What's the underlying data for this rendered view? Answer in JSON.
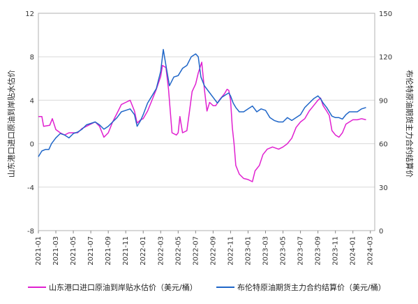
{
  "chart_data": {
    "type": "line",
    "left_axis": {
      "title": "山东港口进口原油到岸贴水估价",
      "range": [
        -8,
        12
      ],
      "ticks": [
        "12",
        "8",
        "4",
        "0",
        "-4",
        "-8"
      ]
    },
    "right_axis": {
      "title": "布伦特原油期货主力合约结算价",
      "range": [
        0,
        150
      ],
      "ticks": [
        "150",
        "120",
        "90",
        "60",
        "30",
        "0"
      ]
    },
    "x_ticks": [
      "2021-01",
      "2021-03",
      "2021-05",
      "2021-07",
      "2021-09",
      "2021-11",
      "2022-01",
      "2022-03",
      "2022-05",
      "2022-07",
      "2022-09",
      "2022-11",
      "2023-01",
      "2023-03",
      "2023-05",
      "2023-07",
      "2023-09",
      "2023-11",
      "2024-01",
      "2024-03"
    ],
    "x_range": [
      0,
      38.5
    ],
    "grid": "horizontal",
    "legend_position": "bottom",
    "series": [
      {
        "name": "山东港口进口原油到岸贴水估价（美元/桶）",
        "axis": "left",
        "color": "#e020d0",
        "points": [
          [
            0,
            2.5
          ],
          [
            0.4,
            2.5
          ],
          [
            0.6,
            1.6
          ],
          [
            1.3,
            1.7
          ],
          [
            1.6,
            2.3
          ],
          [
            2,
            1.3
          ],
          [
            2.5,
            1.0
          ],
          [
            3,
            0.8
          ],
          [
            3.5,
            1.0
          ],
          [
            4,
            1.0
          ],
          [
            4.5,
            1.0
          ],
          [
            5,
            1.4
          ],
          [
            5.5,
            1.6
          ],
          [
            6,
            1.8
          ],
          [
            6.5,
            2.0
          ],
          [
            7,
            1.6
          ],
          [
            7.5,
            0.6
          ],
          [
            8,
            1.0
          ],
          [
            8.5,
            2.0
          ],
          [
            9,
            2.8
          ],
          [
            9.5,
            3.6
          ],
          [
            10,
            3.8
          ],
          [
            10.5,
            4.0
          ],
          [
            11,
            3.0
          ],
          [
            11.3,
            1.9
          ],
          [
            11.7,
            2.2
          ],
          [
            12,
            2.3
          ],
          [
            12.5,
            3.0
          ],
          [
            13,
            4.0
          ],
          [
            13.5,
            5.0
          ],
          [
            14,
            6.2
          ],
          [
            14.2,
            7.2
          ],
          [
            14.6,
            7.0
          ],
          [
            14.9,
            5.0
          ],
          [
            15.1,
            3.0
          ],
          [
            15.3,
            1.0
          ],
          [
            15.8,
            0.8
          ],
          [
            16,
            1.0
          ],
          [
            16.2,
            2.5
          ],
          [
            16.5,
            1.0
          ],
          [
            17,
            1.2
          ],
          [
            17.3,
            3.0
          ],
          [
            17.6,
            4.8
          ],
          [
            18,
            5.5
          ],
          [
            18.3,
            6.5
          ],
          [
            18.7,
            7.5
          ],
          [
            19,
            5.0
          ],
          [
            19.3,
            3.0
          ],
          [
            19.6,
            3.8
          ],
          [
            20,
            3.5
          ],
          [
            20.3,
            3.5
          ],
          [
            20.7,
            4.0
          ],
          [
            21,
            4.3
          ],
          [
            21.3,
            4.6
          ],
          [
            21.6,
            5.0
          ],
          [
            21.8,
            4.9
          ],
          [
            22,
            4.0
          ],
          [
            22.2,
            1.5
          ],
          [
            22.4,
            0.0
          ],
          [
            22.6,
            -2.0
          ],
          [
            23,
            -2.8
          ],
          [
            23.5,
            -3.2
          ],
          [
            24,
            -3.3
          ],
          [
            24.5,
            -3.5
          ],
          [
            24.8,
            -2.5
          ],
          [
            25.3,
            -2.0
          ],
          [
            25.7,
            -1.0
          ],
          [
            26.2,
            -0.5
          ],
          [
            26.8,
            -0.3
          ],
          [
            27.5,
            -0.5
          ],
          [
            28,
            -0.3
          ],
          [
            28.5,
            0.0
          ],
          [
            29,
            0.5
          ],
          [
            29.5,
            1.5
          ],
          [
            30,
            2.0
          ],
          [
            30.5,
            2.3
          ],
          [
            31,
            3.0
          ],
          [
            31.5,
            3.5
          ],
          [
            32,
            4.0
          ],
          [
            32.3,
            4.2
          ],
          [
            32.6,
            3.5
          ],
          [
            33,
            3.0
          ],
          [
            33.3,
            2.6
          ],
          [
            33.6,
            1.2
          ],
          [
            34,
            0.8
          ],
          [
            34.4,
            0.6
          ],
          [
            34.8,
            1.0
          ],
          [
            35.2,
            1.8
          ],
          [
            35.6,
            2.0
          ],
          [
            36,
            2.2
          ],
          [
            36.5,
            2.2
          ],
          [
            37,
            2.3
          ],
          [
            37.5,
            2.2
          ]
        ]
      },
      {
        "name": "布伦特原油期货主力合约结算价（美元/桶）",
        "axis": "right",
        "color": "#1f66c8",
        "points": [
          [
            0,
            51
          ],
          [
            0.4,
            55
          ],
          [
            0.8,
            56
          ],
          [
            1.2,
            56
          ],
          [
            1.5,
            60
          ],
          [
            2,
            64
          ],
          [
            2.5,
            67
          ],
          [
            3,
            66
          ],
          [
            3.5,
            64
          ],
          [
            4,
            67
          ],
          [
            4.5,
            68
          ],
          [
            5,
            70
          ],
          [
            5.5,
            73
          ],
          [
            6,
            74
          ],
          [
            6.5,
            75
          ],
          [
            7,
            73
          ],
          [
            7.5,
            70
          ],
          [
            8,
            72
          ],
          [
            8.5,
            75
          ],
          [
            9,
            78
          ],
          [
            9.5,
            82
          ],
          [
            10,
            83
          ],
          [
            10.5,
            84
          ],
          [
            11,
            80
          ],
          [
            11.3,
            72
          ],
          [
            11.7,
            76
          ],
          [
            12,
            80
          ],
          [
            12.5,
            88
          ],
          [
            13,
            93
          ],
          [
            13.5,
            98
          ],
          [
            14,
            110
          ],
          [
            14.3,
            125
          ],
          [
            14.6,
            114
          ],
          [
            15,
            100
          ],
          [
            15.5,
            106
          ],
          [
            16,
            107
          ],
          [
            16.5,
            112
          ],
          [
            17,
            114
          ],
          [
            17.5,
            120
          ],
          [
            18,
            122
          ],
          [
            18.3,
            120
          ],
          [
            18.6,
            106
          ],
          [
            19,
            100
          ],
          [
            19.5,
            96
          ],
          [
            20,
            92
          ],
          [
            20.5,
            88
          ],
          [
            21,
            92
          ],
          [
            21.5,
            94
          ],
          [
            21.8,
            95
          ],
          [
            22,
            93
          ],
          [
            22.3,
            88
          ],
          [
            22.6,
            85
          ],
          [
            23,
            82
          ],
          [
            23.5,
            82
          ],
          [
            24,
            84
          ],
          [
            24.5,
            86
          ],
          [
            25,
            82
          ],
          [
            25.5,
            84
          ],
          [
            26,
            83
          ],
          [
            26.5,
            78
          ],
          [
            27,
            76
          ],
          [
            27.5,
            75
          ],
          [
            28,
            75
          ],
          [
            28.5,
            78
          ],
          [
            29,
            76
          ],
          [
            29.5,
            78
          ],
          [
            30,
            80
          ],
          [
            30.5,
            85
          ],
          [
            31,
            88
          ],
          [
            31.5,
            91
          ],
          [
            32,
            93
          ],
          [
            32.3,
            91
          ],
          [
            32.6,
            88
          ],
          [
            33,
            85
          ],
          [
            33.3,
            82
          ],
          [
            33.6,
            79
          ],
          [
            34,
            78
          ],
          [
            34.4,
            78
          ],
          [
            34.8,
            77
          ],
          [
            35.2,
            80
          ],
          [
            35.6,
            82
          ],
          [
            36,
            82
          ],
          [
            36.5,
            82
          ],
          [
            37,
            84
          ],
          [
            37.5,
            85
          ]
        ]
      }
    ]
  }
}
